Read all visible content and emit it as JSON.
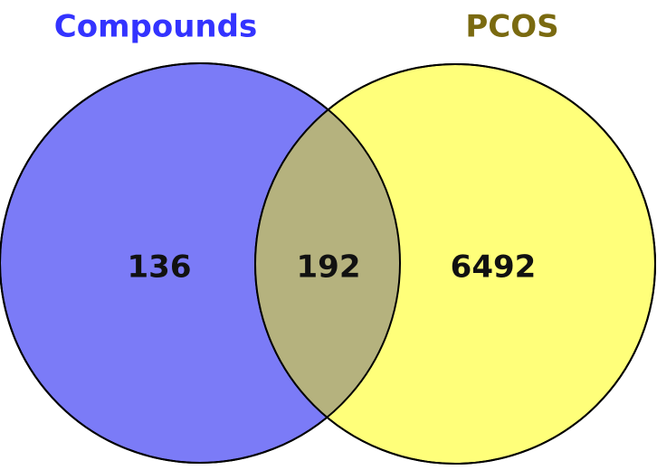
{
  "venn": {
    "sets": [
      {
        "name": "Compounds",
        "color": "#3333ff",
        "fill": "#7b7bf7"
      },
      {
        "name": "PCOS",
        "color": "#7a6a10",
        "fill": "#ffff7a"
      }
    ],
    "intersection_fill": "#b5b27e",
    "counts": {
      "left_only": "136",
      "both": "192",
      "right_only": "6492"
    }
  }
}
